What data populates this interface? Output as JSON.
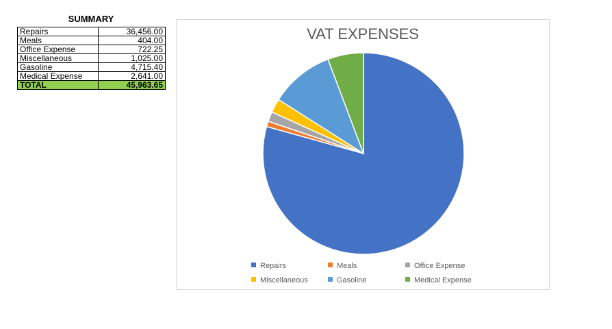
{
  "summary": {
    "title": "SUMMARY",
    "rows": [
      {
        "label": "Repairs",
        "value": "36,456.00"
      },
      {
        "label": "Meals",
        "value": "404.00"
      },
      {
        "label": "Office Expense",
        "value": "722.25"
      },
      {
        "label": "Miscellaneous",
        "value": "1,025.00"
      },
      {
        "label": "Gasoline",
        "value": "4,715.40"
      },
      {
        "label": "Medical Expense",
        "value": "2,641.00"
      }
    ],
    "total_label": "TOTAL",
    "total_value": "45,963.65",
    "total_color": "#92d050"
  },
  "chart_data": {
    "type": "pie",
    "title": "VAT EXPENSES",
    "categories": [
      "Repairs",
      "Meals",
      "Office Expense",
      "Miscellaneous",
      "Gasoline",
      "Medical Expense"
    ],
    "values": [
      36456.0,
      404.0,
      722.25,
      1025.0,
      4715.4,
      2641.0
    ],
    "colors": [
      "#4472c4",
      "#ed7d31",
      "#a5a5a5",
      "#ffc000",
      "#5b9bd5",
      "#70ad47"
    ],
    "legend_position": "bottom"
  }
}
